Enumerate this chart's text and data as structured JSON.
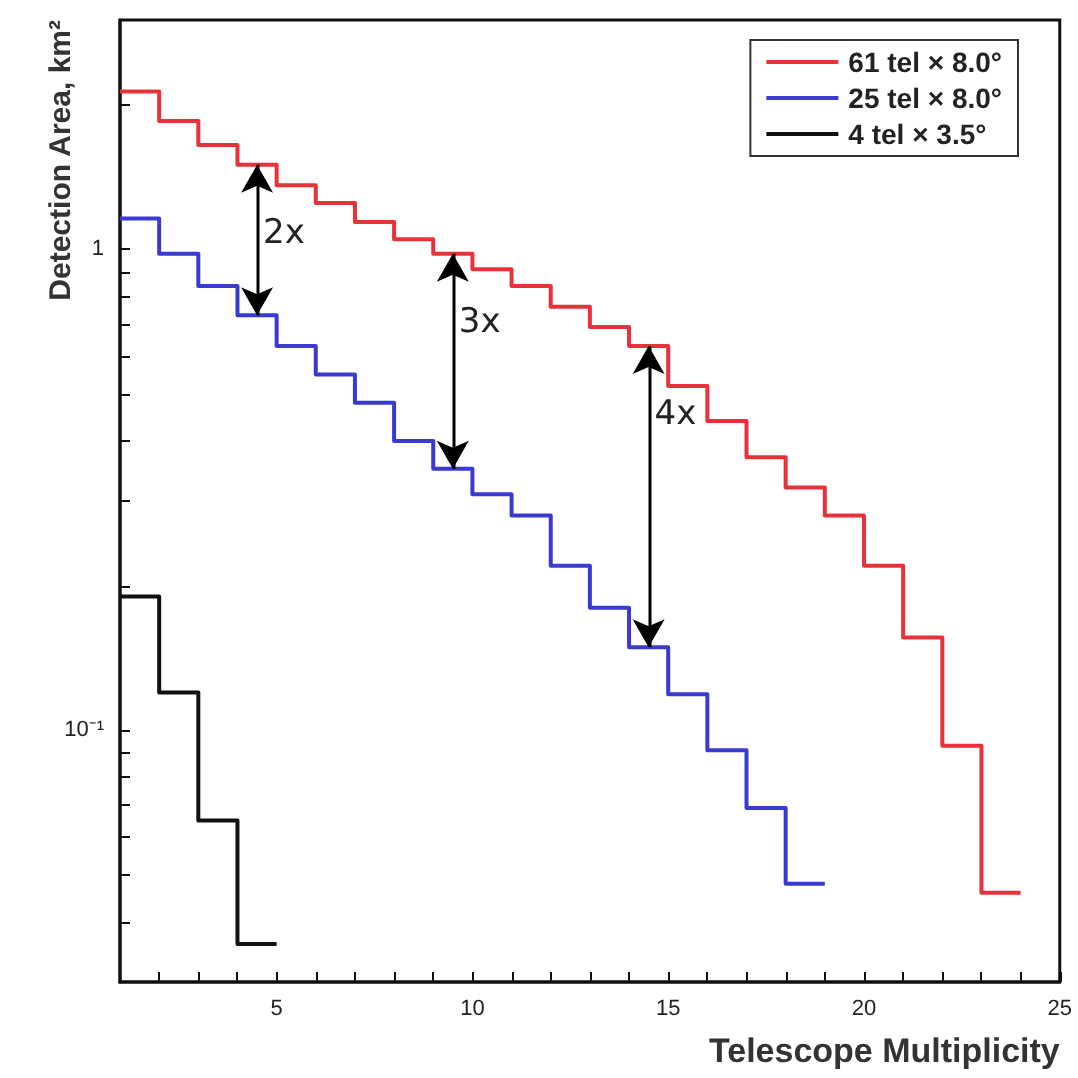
{
  "chart_data": {
    "type": "histogram",
    "xlabel": "Telescope Multiplicity",
    "ylabel": "Detection Area, km²",
    "bins": [
      1,
      2,
      3,
      4,
      5,
      6,
      7,
      8,
      9,
      10,
      11,
      12,
      13,
      14,
      15,
      16,
      17,
      18,
      19,
      20,
      21,
      22,
      23,
      24
    ],
    "series": [
      {
        "name": "61 tel × 8.0°",
        "color": "#e8323a",
        "values": [
          2.13,
          1.85,
          1.65,
          1.5,
          1.36,
          1.25,
          1.14,
          1.05,
          0.98,
          0.91,
          0.84,
          0.76,
          0.69,
          0.63,
          0.52,
          0.44,
          0.37,
          0.32,
          0.28,
          0.22,
          0.156,
          0.093,
          0.046
        ]
      },
      {
        "name": "25 tel × 8.0°",
        "color": "#3a3ad0",
        "bins": [
          1,
          2,
          3,
          4,
          5,
          6,
          7,
          8,
          9,
          10,
          11,
          12,
          13,
          14,
          15,
          16,
          17,
          18,
          19
        ],
        "values": [
          1.16,
          0.98,
          0.84,
          0.73,
          0.63,
          0.55,
          0.48,
          0.4,
          0.35,
          0.31,
          0.28,
          0.22,
          0.18,
          0.149,
          0.119,
          0.091,
          0.069,
          0.048
        ]
      },
      {
        "name": "4 tel × 3.5°",
        "color": "#111111",
        "bins": [
          1,
          2,
          3,
          4,
          5
        ],
        "values": [
          0.19,
          0.12,
          0.065,
          0.036
        ]
      }
    ],
    "xlim": [
      1,
      25
    ],
    "xticks": [
      {
        "value": 2,
        "label": null
      },
      {
        "value": 3,
        "label": null
      },
      {
        "value": 4,
        "label": null
      },
      5,
      {
        "value": 6,
        "label": null
      },
      {
        "value": 7,
        "label": null
      },
      {
        "value": 8,
        "label": null
      },
      {
        "value": 9,
        "label": null
      },
      10,
      {
        "value": 11,
        "label": null
      },
      {
        "value": 12,
        "label": null
      },
      {
        "value": 13,
        "label": null
      },
      {
        "value": 14,
        "label": null
      },
      15,
      {
        "value": 16,
        "label": null
      },
      {
        "value": 17,
        "label": null
      },
      {
        "value": 18,
        "label": null
      },
      {
        "value": 19,
        "label": null
      },
      20,
      {
        "value": 21,
        "label": null
      },
      {
        "value": 22,
        "label": null
      },
      {
        "value": 23,
        "label": null
      },
      {
        "value": 24,
        "label": null
      },
      25
    ],
    "ylim": [
      0.03,
      3
    ],
    "yticks": [
      {
        "value": 0.04,
        "label": null
      },
      {
        "value": 0.05,
        "label": null
      },
      {
        "value": 0.06,
        "label": null
      },
      {
        "value": 0.07,
        "label": null
      },
      {
        "value": 0.08,
        "label": null
      },
      {
        "value": 0.09,
        "label": null
      },
      {
        "value": 0.1,
        "label": "10⁻¹"
      },
      {
        "value": 0.2,
        "label": null
      },
      {
        "value": 0.3,
        "label": null
      },
      {
        "value": 0.4,
        "label": null
      },
      {
        "value": 0.5,
        "label": null
      },
      {
        "value": 0.6,
        "label": null
      },
      {
        "value": 0.7,
        "label": null
      },
      {
        "value": 0.8,
        "label": null
      },
      {
        "value": 0.9,
        "label": null
      },
      1,
      {
        "value": 2,
        "label": null
      }
    ],
    "log": true,
    "grid": false,
    "legend": "top right",
    "annotations": [
      {
        "text": "2x",
        "x": 4.5,
        "y": 1.5
      },
      {
        "text": "3x",
        "x": 9.5,
        "y": 0.98
      },
      {
        "text": "4x",
        "x": 14.5,
        "y": 0.63
      }
    ]
  }
}
